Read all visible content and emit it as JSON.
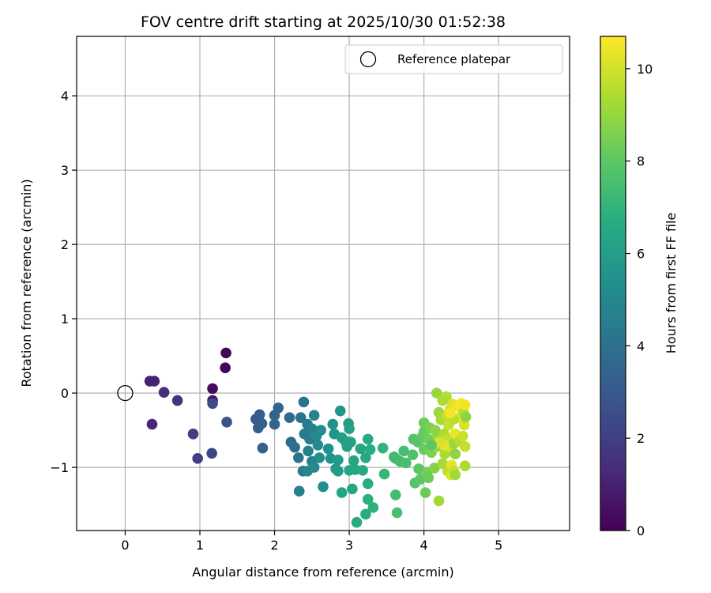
{
  "chart_data": {
    "type": "scatter",
    "title": "FOV centre drift starting at 2025/10/30 01:52:38",
    "xlabel": "Angular distance from reference (arcmin)",
    "ylabel": "Rotation from reference (arcmin)",
    "xlim": [
      -0.65,
      5.95
    ],
    "ylim": [
      -1.85,
      4.8
    ],
    "xticks": [
      0,
      1,
      2,
      3,
      4,
      5
    ],
    "yticks": [
      -1,
      0,
      1,
      2,
      3,
      4
    ],
    "grid": true,
    "legend": {
      "label": "Reference platepar",
      "position": "top-right"
    },
    "reference_point": {
      "x": 0,
      "y": 0
    },
    "colorbar": {
      "label": "Hours from first FF file",
      "colormap": "viridis",
      "range": [
        0,
        10.7
      ],
      "ticks": [
        0,
        2,
        4,
        6,
        8,
        10
      ]
    },
    "points": [
      {
        "x": 1.35,
        "y": 0.54,
        "c": 0.1
      },
      {
        "x": 1.34,
        "y": 0.34,
        "c": 0.2
      },
      {
        "x": 1.17,
        "y": 0.06,
        "c": 0.3
      },
      {
        "x": 1.17,
        "y": -0.1,
        "c": 0.5
      },
      {
        "x": 0.33,
        "y": 0.16,
        "c": 1.0
      },
      {
        "x": 0.39,
        "y": 0.16,
        "c": 1.1
      },
      {
        "x": 0.52,
        "y": 0.01,
        "c": 1.5
      },
      {
        "x": 0.7,
        "y": -0.1,
        "c": 1.6
      },
      {
        "x": 0.36,
        "y": -0.42,
        "c": 1.2
      },
      {
        "x": 0.91,
        "y": -0.55,
        "c": 2.0
      },
      {
        "x": 0.97,
        "y": -0.88,
        "c": 2.1
      },
      {
        "x": 1.16,
        "y": -0.81,
        "c": 2.3
      },
      {
        "x": 1.17,
        "y": -0.14,
        "c": 2.5
      },
      {
        "x": 1.36,
        "y": -0.39,
        "c": 2.7
      },
      {
        "x": 1.75,
        "y": -0.35,
        "c": 3.0
      },
      {
        "x": 1.8,
        "y": -0.29,
        "c": 3.1
      },
      {
        "x": 1.78,
        "y": -0.47,
        "c": 3.2
      },
      {
        "x": 1.83,
        "y": -0.41,
        "c": 3.3
      },
      {
        "x": 1.84,
        "y": -0.74,
        "c": 3.4
      },
      {
        "x": 2.0,
        "y": -0.3,
        "c": 3.4
      },
      {
        "x": 2.05,
        "y": -0.2,
        "c": 3.5
      },
      {
        "x": 2.0,
        "y": -0.42,
        "c": 3.5
      },
      {
        "x": 2.2,
        "y": -0.33,
        "c": 3.7
      },
      {
        "x": 2.22,
        "y": -0.66,
        "c": 3.8
      },
      {
        "x": 2.27,
        "y": -0.73,
        "c": 3.9
      },
      {
        "x": 2.35,
        "y": -0.33,
        "c": 4.0
      },
      {
        "x": 2.39,
        "y": -0.12,
        "c": 4.1
      },
      {
        "x": 2.32,
        "y": -0.87,
        "c": 4.2
      },
      {
        "x": 2.38,
        "y": -1.05,
        "c": 4.3
      },
      {
        "x": 2.33,
        "y": -1.32,
        "c": 4.6
      },
      {
        "x": 2.4,
        "y": -0.55,
        "c": 4.4
      },
      {
        "x": 2.44,
        "y": -0.42,
        "c": 4.5
      },
      {
        "x": 2.47,
        "y": -0.62,
        "c": 4.5
      },
      {
        "x": 2.45,
        "y": -0.78,
        "c": 4.6
      },
      {
        "x": 2.5,
        "y": -0.48,
        "c": 4.7
      },
      {
        "x": 2.53,
        "y": -0.3,
        "c": 4.8
      },
      {
        "x": 2.5,
        "y": -0.92,
        "c": 4.8
      },
      {
        "x": 2.44,
        "y": -1.05,
        "c": 4.9
      },
      {
        "x": 2.53,
        "y": -1.0,
        "c": 5.0
      },
      {
        "x": 2.56,
        "y": -0.58,
        "c": 5.0
      },
      {
        "x": 2.58,
        "y": -0.7,
        "c": 5.1
      },
      {
        "x": 2.6,
        "y": -0.87,
        "c": 5.2
      },
      {
        "x": 2.62,
        "y": -0.5,
        "c": 5.2
      },
      {
        "x": 2.65,
        "y": -1.26,
        "c": 5.3
      },
      {
        "x": 2.72,
        "y": -0.75,
        "c": 5.4
      },
      {
        "x": 2.75,
        "y": -0.88,
        "c": 5.5
      },
      {
        "x": 2.78,
        "y": -0.42,
        "c": 5.5
      },
      {
        "x": 2.8,
        "y": -0.55,
        "c": 5.6
      },
      {
        "x": 2.82,
        "y": -1.02,
        "c": 5.7
      },
      {
        "x": 2.85,
        "y": -0.9,
        "c": 5.8
      },
      {
        "x": 2.85,
        "y": -1.05,
        "c": 5.9
      },
      {
        "x": 2.88,
        "y": -0.24,
        "c": 5.6
      },
      {
        "x": 2.9,
        "y": -0.6,
        "c": 6.0
      },
      {
        "x": 2.9,
        "y": -1.34,
        "c": 6.3
      },
      {
        "x": 2.95,
        "y": -0.65,
        "c": 6.0
      },
      {
        "x": 2.97,
        "y": -0.72,
        "c": 6.1
      },
      {
        "x": 2.99,
        "y": -0.41,
        "c": 6.0
      },
      {
        "x": 3.0,
        "y": -0.48,
        "c": 6.1
      },
      {
        "x": 3.0,
        "y": -1.04,
        "c": 6.3
      },
      {
        "x": 3.02,
        "y": -0.66,
        "c": 6.2
      },
      {
        "x": 3.04,
        "y": -1.29,
        "c": 6.4
      },
      {
        "x": 3.06,
        "y": -0.91,
        "c": 6.3
      },
      {
        "x": 3.08,
        "y": -1.03,
        "c": 6.4
      },
      {
        "x": 3.1,
        "y": -1.74,
        "c": 6.6
      },
      {
        "x": 3.15,
        "y": -0.75,
        "c": 6.4
      },
      {
        "x": 3.18,
        "y": -1.04,
        "c": 6.5
      },
      {
        "x": 3.22,
        "y": -0.87,
        "c": 6.5
      },
      {
        "x": 3.22,
        "y": -1.63,
        "c": 6.7
      },
      {
        "x": 3.25,
        "y": -0.62,
        "c": 6.6
      },
      {
        "x": 3.25,
        "y": -1.22,
        "c": 6.7
      },
      {
        "x": 3.25,
        "y": -1.43,
        "c": 6.8
      },
      {
        "x": 3.28,
        "y": -0.76,
        "c": 6.7
      },
      {
        "x": 3.32,
        "y": -1.54,
        "c": 6.9
      },
      {
        "x": 3.45,
        "y": -0.74,
        "c": 7.0
      },
      {
        "x": 3.47,
        "y": -1.09,
        "c": 7.1
      },
      {
        "x": 3.6,
        "y": -0.86,
        "c": 7.2
      },
      {
        "x": 3.62,
        "y": -0.88,
        "c": 7.3
      },
      {
        "x": 3.62,
        "y": -1.37,
        "c": 7.4
      },
      {
        "x": 3.64,
        "y": -1.61,
        "c": 7.6
      },
      {
        "x": 3.68,
        "y": -0.92,
        "c": 7.4
      },
      {
        "x": 3.73,
        "y": -0.78,
        "c": 7.5
      },
      {
        "x": 3.76,
        "y": -0.94,
        "c": 7.6
      },
      {
        "x": 3.85,
        "y": -0.83,
        "c": 7.7
      },
      {
        "x": 3.86,
        "y": -0.62,
        "c": 7.8
      },
      {
        "x": 3.88,
        "y": -1.21,
        "c": 7.8
      },
      {
        "x": 3.92,
        "y": -0.66,
        "c": 7.9
      },
      {
        "x": 3.93,
        "y": -1.02,
        "c": 8.0
      },
      {
        "x": 3.95,
        "y": -1.16,
        "c": 8.0
      },
      {
        "x": 3.98,
        "y": -0.58,
        "c": 8.1
      },
      {
        "x": 4.0,
        "y": -0.52,
        "c": 8.2
      },
      {
        "x": 4.0,
        "y": -0.4,
        "c": 8.3
      },
      {
        "x": 4.0,
        "y": -0.76,
        "c": 8.2
      },
      {
        "x": 4.02,
        "y": -1.34,
        "c": 8.3
      },
      {
        "x": 4.04,
        "y": -1.07,
        "c": 8.4
      },
      {
        "x": 4.06,
        "y": -1.14,
        "c": 8.3
      },
      {
        "x": 4.06,
        "y": -0.62,
        "c": 8.4
      },
      {
        "x": 4.08,
        "y": -0.47,
        "c": 8.5
      },
      {
        "x": 4.1,
        "y": -0.8,
        "c": 8.6
      },
      {
        "x": 4.12,
        "y": -0.72,
        "c": 8.7
      },
      {
        "x": 4.14,
        "y": -1.01,
        "c": 8.7
      },
      {
        "x": 4.15,
        "y": -0.5,
        "c": 8.8
      },
      {
        "x": 4.17,
        "y": 0.0,
        "c": 9.0
      },
      {
        "x": 4.18,
        "y": -0.58,
        "c": 8.9
      },
      {
        "x": 4.18,
        "y": -0.72,
        "c": 9.0
      },
      {
        "x": 4.2,
        "y": -1.45,
        "c": 9.2
      },
      {
        "x": 4.2,
        "y": -0.26,
        "c": 9.1
      },
      {
        "x": 4.22,
        "y": -0.68,
        "c": 9.2
      },
      {
        "x": 4.23,
        "y": -0.36,
        "c": 9.3
      },
      {
        "x": 4.25,
        "y": -0.95,
        "c": 9.3
      },
      {
        "x": 4.27,
        "y": -0.55,
        "c": 9.4
      },
      {
        "x": 4.28,
        "y": -0.7,
        "c": 9.5
      },
      {
        "x": 4.28,
        "y": -0.82,
        "c": 9.4
      },
      {
        "x": 4.3,
        "y": -0.05,
        "c": 9.5
      },
      {
        "x": 4.3,
        "y": -0.3,
        "c": 9.7
      },
      {
        "x": 4.32,
        "y": -1.05,
        "c": 9.6
      },
      {
        "x": 4.32,
        "y": -0.62,
        "c": 9.7
      },
      {
        "x": 4.33,
        "y": -0.43,
        "c": 9.8
      },
      {
        "x": 4.35,
        "y": -0.22,
        "c": 9.9
      },
      {
        "x": 4.35,
        "y": -0.73,
        "c": 10.0
      },
      {
        "x": 4.36,
        "y": -1.1,
        "c": 10.2
      },
      {
        "x": 4.37,
        "y": -0.97,
        "c": 10.3
      },
      {
        "x": 4.38,
        "y": -0.15,
        "c": 10.2
      },
      {
        "x": 4.4,
        "y": -0.68,
        "c": 9.1
      },
      {
        "x": 4.4,
        "y": -1.05,
        "c": 9.8
      },
      {
        "x": 4.42,
        "y": -0.82,
        "c": 8.9
      },
      {
        "x": 4.42,
        "y": -1.1,
        "c": 9.2
      },
      {
        "x": 4.42,
        "y": -0.55,
        "c": 10.4
      },
      {
        "x": 4.45,
        "y": -0.18,
        "c": 10.5
      },
      {
        "x": 4.47,
        "y": -0.33,
        "c": 10.4
      },
      {
        "x": 4.48,
        "y": -0.65,
        "c": 9.5
      },
      {
        "x": 4.5,
        "y": -0.14,
        "c": 10.6
      },
      {
        "x": 4.52,
        "y": -0.58,
        "c": 9.9
      },
      {
        "x": 4.53,
        "y": -0.26,
        "c": 9.6
      },
      {
        "x": 4.54,
        "y": -0.43,
        "c": 10.1
      },
      {
        "x": 4.55,
        "y": -0.16,
        "c": 10.5
      },
      {
        "x": 4.55,
        "y": -0.72,
        "c": 9.8
      },
      {
        "x": 4.55,
        "y": -0.98,
        "c": 9.4
      },
      {
        "x": 4.56,
        "y": -0.32,
        "c": 8.9
      },
      {
        "x": 4.4,
        "y": -0.35,
        "c": 9.6
      },
      {
        "x": 4.27,
        "y": -0.7,
        "c": 10.3
      },
      {
        "x": 4.2,
        "y": -0.66,
        "c": 10.1
      },
      {
        "x": 4.35,
        "y": -0.27,
        "c": 10.6
      },
      {
        "x": 4.1,
        "y": -0.7,
        "c": 8.0
      },
      {
        "x": 4.25,
        "y": -0.1,
        "c": 9.4
      }
    ]
  }
}
